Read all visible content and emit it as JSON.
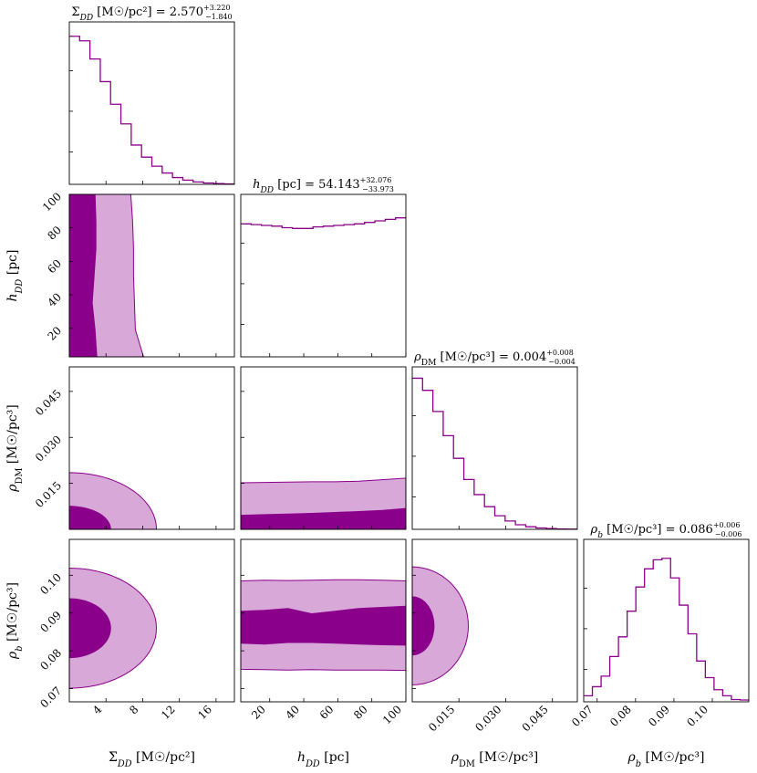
{
  "chart_data": {
    "type": "corner",
    "colors": {
      "line": "#8b008b",
      "inner": "#8b008b",
      "outer": "#d8a9d8"
    },
    "parameters": [
      {
        "key": "sigma",
        "label": "Σ_DD [M☉/pc²]",
        "title": "Σ_DD [M☉/pc²] = 2.570 +3.220 −1.840",
        "range": [
          0,
          18
        ],
        "ticks": [
          4,
          8,
          12,
          16
        ]
      },
      {
        "key": "h",
        "label": "h_DD [pc]",
        "title": "h_DD [pc] = 54.143 +32.076 −33.973",
        "range": [
          3,
          100
        ],
        "ticks": [
          20,
          40,
          60,
          80,
          100
        ]
      },
      {
        "key": "rho_dm",
        "label": "ρ_DM [M☉/pc³]",
        "title": "ρ_DM [M☉/pc³] = 0.004 +0.008 −0.004",
        "range": [
          0,
          0.053
        ],
        "ticks": [
          0.015,
          0.03,
          0.045
        ],
        "tick_labels": [
          "0.015",
          "0.030",
          "0.045"
        ]
      },
      {
        "key": "rho_b",
        "label": "ρ_b [M☉/pc³]",
        "title": "ρ_b [M☉/pc³] = 0.086 +0.006 −0.006",
        "range": [
          0.0665,
          0.1095
        ],
        "ticks": [
          0.07,
          0.08,
          0.09,
          0.1
        ],
        "tick_labels": [
          "0.07",
          "0.08",
          "0.09",
          "0.10"
        ]
      }
    ],
    "histograms": {
      "sigma": [
        0.98,
        0.95,
        0.83,
        0.68,
        0.53,
        0.4,
        0.26,
        0.18,
        0.12,
        0.075,
        0.045,
        0.028,
        0.016,
        0.009,
        0.005,
        0.003
      ],
      "h": [
        0.88,
        0.875,
        0.87,
        0.865,
        0.855,
        0.85,
        0.85,
        0.86,
        0.865,
        0.87,
        0.875,
        0.88,
        0.89,
        0.9,
        0.91,
        0.92
      ],
      "rho_dm": [
        1.0,
        0.92,
        0.78,
        0.62,
        0.47,
        0.33,
        0.23,
        0.15,
        0.09,
        0.055,
        0.03,
        0.017,
        0.009,
        0.005,
        0.002,
        0.001
      ],
      "rho_b": [
        0.04,
        0.1,
        0.17,
        0.3,
        0.43,
        0.6,
        0.76,
        0.88,
        0.94,
        0.95,
        0.82,
        0.64,
        0.45,
        0.27,
        0.16,
        0.08,
        0.04,
        0.015,
        0.012
      ]
    },
    "contours": {
      "h_vs_sigma": {
        "inner_x_max": [
          2.8,
          2.9,
          2.9,
          2.7,
          2.5,
          2.8,
          3.0
        ],
        "outer_x_max": [
          6.7,
          6.9,
          7.0,
          7.0,
          7.1,
          7.2,
          8.1
        ]
      },
      "rho_dm_vs_sigma": {
        "inner": {
          "sigma_max": 4.5,
          "rho_max": 0.0075
        },
        "outer": {
          "sigma_max": 9.5,
          "rho_max": 0.0185
        }
      },
      "rho_dm_vs_h": {
        "inner_upper": [
          0.0046,
          0.0048,
          0.005,
          0.0052,
          0.0055,
          0.0058,
          0.0062,
          0.0068
        ],
        "outer_upper": [
          0.0152,
          0.0153,
          0.0154,
          0.0155,
          0.0155,
          0.0157,
          0.0162,
          0.0167
        ]
      },
      "rho_b_vs_sigma": {
        "center": 0.086,
        "inner": {
          "sigma_max": 4.5,
          "half_height": 0.0078
        },
        "outer": {
          "sigma_max": 9.5,
          "half_height": 0.0159
        }
      },
      "rho_b_vs_h": {
        "outer_top": [
          0.0985,
          0.0987,
          0.0986,
          0.0987,
          0.0988,
          0.0988,
          0.0987,
          0.0985
        ],
        "outer_bottom": [
          0.0751,
          0.075,
          0.0749,
          0.075,
          0.0749,
          0.0749,
          0.0749,
          0.0748
        ],
        "inner_top": [
          0.0905,
          0.0907,
          0.0912,
          0.0898,
          0.0905,
          0.0912,
          0.0915,
          0.0918
        ],
        "inner_bottom": [
          0.082,
          0.0818,
          0.0822,
          0.0822,
          0.082,
          0.0818,
          0.0816,
          0.0815
        ]
      },
      "rho_b_vs_rho_dm": {
        "center": 0.0866,
        "inner": {
          "rho_dm_max": 0.007,
          "half_height": 0.0077
        },
        "outer": {
          "rho_dm_max": 0.018,
          "half_height": 0.0156
        }
      }
    }
  }
}
